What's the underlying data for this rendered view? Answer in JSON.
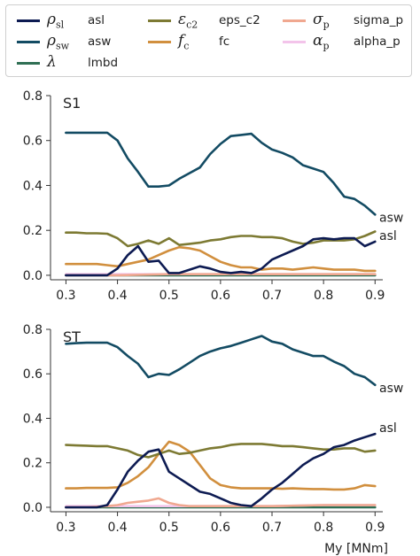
{
  "legend": [
    {
      "symbol": "ρ",
      "sub": "sl",
      "name": "asl",
      "color": "#0d1b52"
    },
    {
      "symbol": "ρ",
      "sub": "sw",
      "name": "asw",
      "color": "#134b63"
    },
    {
      "symbol": "λ",
      "sub": "",
      "name": "lmbd",
      "color": "#2f6f54"
    },
    {
      "symbol": "ε",
      "sub": "c2",
      "name": "eps_c2",
      "color": "#7d7a33"
    },
    {
      "symbol": "f",
      "sub": "c",
      "name": "fc",
      "color": "#d18f3e"
    },
    {
      "symbol": "σ",
      "sub": "p",
      "name": "sigma_p",
      "color": "#f0a890"
    },
    {
      "symbol": "α",
      "sub": "p",
      "name": "alpha_p",
      "color": "#f3c4ea"
    }
  ],
  "chart_data": [
    {
      "type": "line",
      "title": "S1",
      "xlabel": "",
      "ylabel": "",
      "xlim": [
        0.27,
        0.915
      ],
      "ylim": [
        -0.02,
        0.8
      ],
      "xticks": [
        "0.3",
        "0.4",
        "0.5",
        "0.6",
        "0.7",
        "0.8",
        "0.9"
      ],
      "yticks": [
        "0.0",
        "0.2",
        "0.4",
        "0.6",
        "0.8"
      ],
      "end_labels": [
        "asw",
        "asl"
      ],
      "series": [
        {
          "name": "asw",
          "color": "#134b63",
          "x": [
            0.3,
            0.32,
            0.34,
            0.36,
            0.38,
            0.4,
            0.42,
            0.44,
            0.46,
            0.48,
            0.5,
            0.52,
            0.54,
            0.56,
            0.58,
            0.6,
            0.62,
            0.64,
            0.66,
            0.68,
            0.7,
            0.72,
            0.74,
            0.76,
            0.78,
            0.8,
            0.82,
            0.84,
            0.86,
            0.88,
            0.9
          ],
          "y": [
            0.635,
            0.635,
            0.635,
            0.635,
            0.635,
            0.6,
            0.52,
            0.46,
            0.395,
            0.395,
            0.4,
            0.43,
            0.455,
            0.48,
            0.54,
            0.585,
            0.62,
            0.625,
            0.63,
            0.59,
            0.56,
            0.545,
            0.525,
            0.49,
            0.475,
            0.46,
            0.41,
            0.35,
            0.34,
            0.31,
            0.27
          ]
        },
        {
          "name": "asl",
          "color": "#0d1b52",
          "x": [
            0.3,
            0.32,
            0.34,
            0.36,
            0.38,
            0.4,
            0.42,
            0.44,
            0.46,
            0.48,
            0.5,
            0.52,
            0.54,
            0.56,
            0.58,
            0.6,
            0.62,
            0.64,
            0.66,
            0.68,
            0.7,
            0.72,
            0.74,
            0.76,
            0.78,
            0.8,
            0.82,
            0.84,
            0.86,
            0.88,
            0.9
          ],
          "y": [
            0.0,
            0.0,
            0.0,
            0.0,
            0.0,
            0.03,
            0.09,
            0.13,
            0.06,
            0.065,
            0.01,
            0.01,
            0.025,
            0.04,
            0.03,
            0.015,
            0.01,
            0.015,
            0.01,
            0.03,
            0.07,
            0.09,
            0.11,
            0.13,
            0.16,
            0.165,
            0.16,
            0.165,
            0.165,
            0.13,
            0.15
          ]
        },
        {
          "name": "eps_c2",
          "color": "#7d7a33",
          "x": [
            0.3,
            0.32,
            0.34,
            0.36,
            0.38,
            0.4,
            0.42,
            0.44,
            0.46,
            0.48,
            0.5,
            0.52,
            0.54,
            0.56,
            0.58,
            0.6,
            0.62,
            0.64,
            0.66,
            0.68,
            0.7,
            0.72,
            0.74,
            0.76,
            0.78,
            0.8,
            0.82,
            0.84,
            0.86,
            0.88,
            0.9
          ],
          "y": [
            0.19,
            0.19,
            0.187,
            0.187,
            0.185,
            0.165,
            0.13,
            0.14,
            0.155,
            0.14,
            0.165,
            0.135,
            0.14,
            0.145,
            0.155,
            0.16,
            0.17,
            0.175,
            0.175,
            0.17,
            0.17,
            0.165,
            0.15,
            0.14,
            0.145,
            0.155,
            0.155,
            0.155,
            0.16,
            0.175,
            0.195
          ]
        },
        {
          "name": "fc",
          "color": "#d18f3e",
          "x": [
            0.3,
            0.32,
            0.34,
            0.36,
            0.38,
            0.4,
            0.42,
            0.44,
            0.46,
            0.48,
            0.5,
            0.52,
            0.54,
            0.56,
            0.58,
            0.6,
            0.62,
            0.64,
            0.66,
            0.68,
            0.7,
            0.72,
            0.74,
            0.76,
            0.78,
            0.8,
            0.82,
            0.84,
            0.86,
            0.88,
            0.9
          ],
          "y": [
            0.05,
            0.05,
            0.05,
            0.05,
            0.045,
            0.04,
            0.05,
            0.06,
            0.07,
            0.09,
            0.11,
            0.125,
            0.12,
            0.11,
            0.085,
            0.06,
            0.045,
            0.035,
            0.035,
            0.025,
            0.03,
            0.03,
            0.025,
            0.03,
            0.035,
            0.03,
            0.025,
            0.025,
            0.025,
            0.02,
            0.02
          ]
        },
        {
          "name": "sigma_p",
          "color": "#f0a890",
          "x": [
            0.3,
            0.4,
            0.5,
            0.6,
            0.7,
            0.8,
            0.9
          ],
          "y": [
            0.0,
            0.0,
            0.005,
            0.005,
            0.005,
            0.005,
            0.005
          ]
        },
        {
          "name": "alpha_p",
          "color": "#f3c4ea",
          "x": [
            0.3,
            0.4,
            0.5,
            0.6,
            0.7,
            0.8,
            0.9
          ],
          "y": [
            0.005,
            0.005,
            0.005,
            0.005,
            0.005,
            0.005,
            0.005
          ]
        },
        {
          "name": "lmbd",
          "color": "#2f6f54",
          "x": [
            0.3,
            0.4,
            0.5,
            0.6,
            0.7,
            0.8,
            0.9
          ],
          "y": [
            0.0,
            0.0,
            0.0,
            0.0,
            0.0,
            0.0,
            0.0
          ]
        }
      ]
    },
    {
      "type": "line",
      "title": "ST",
      "xlabel": "My [MNm]",
      "ylabel": "",
      "xlim": [
        0.27,
        0.915
      ],
      "ylim": [
        -0.02,
        0.8
      ],
      "xticks": [
        "0.3",
        "0.4",
        "0.5",
        "0.6",
        "0.7",
        "0.8",
        "0.9"
      ],
      "yticks": [
        "0.0",
        "0.2",
        "0.4",
        "0.6",
        "0.8"
      ],
      "end_labels": [
        "asw",
        "asl"
      ],
      "series": [
        {
          "name": "asw",
          "color": "#134b63",
          "x": [
            0.3,
            0.32,
            0.34,
            0.36,
            0.38,
            0.4,
            0.42,
            0.44,
            0.46,
            0.48,
            0.5,
            0.52,
            0.54,
            0.56,
            0.58,
            0.6,
            0.62,
            0.64,
            0.66,
            0.68,
            0.7,
            0.72,
            0.74,
            0.76,
            0.78,
            0.8,
            0.82,
            0.84,
            0.86,
            0.88,
            0.9
          ],
          "y": [
            0.735,
            0.738,
            0.74,
            0.74,
            0.74,
            0.72,
            0.68,
            0.645,
            0.585,
            0.6,
            0.595,
            0.62,
            0.65,
            0.68,
            0.7,
            0.715,
            0.725,
            0.74,
            0.755,
            0.77,
            0.745,
            0.735,
            0.71,
            0.695,
            0.68,
            0.68,
            0.655,
            0.635,
            0.6,
            0.585,
            0.55
          ]
        },
        {
          "name": "asl",
          "color": "#0d1b52",
          "x": [
            0.3,
            0.32,
            0.34,
            0.36,
            0.38,
            0.4,
            0.42,
            0.44,
            0.46,
            0.48,
            0.5,
            0.52,
            0.54,
            0.56,
            0.58,
            0.6,
            0.62,
            0.64,
            0.66,
            0.68,
            0.7,
            0.72,
            0.74,
            0.76,
            0.78,
            0.8,
            0.82,
            0.84,
            0.86,
            0.88,
            0.9
          ],
          "y": [
            0.0,
            0.0,
            0.0,
            0.0,
            0.01,
            0.08,
            0.16,
            0.21,
            0.25,
            0.26,
            0.16,
            0.13,
            0.1,
            0.07,
            0.06,
            0.04,
            0.02,
            0.01,
            0.005,
            0.04,
            0.08,
            0.11,
            0.15,
            0.19,
            0.22,
            0.24,
            0.27,
            0.28,
            0.3,
            0.315,
            0.33
          ]
        },
        {
          "name": "eps_c2",
          "color": "#7d7a33",
          "x": [
            0.3,
            0.32,
            0.34,
            0.36,
            0.38,
            0.4,
            0.42,
            0.44,
            0.46,
            0.48,
            0.5,
            0.52,
            0.54,
            0.56,
            0.58,
            0.6,
            0.62,
            0.64,
            0.66,
            0.68,
            0.7,
            0.72,
            0.74,
            0.76,
            0.78,
            0.8,
            0.82,
            0.84,
            0.86,
            0.88,
            0.9
          ],
          "y": [
            0.28,
            0.278,
            0.277,
            0.275,
            0.275,
            0.265,
            0.255,
            0.235,
            0.225,
            0.24,
            0.255,
            0.24,
            0.245,
            0.255,
            0.265,
            0.27,
            0.28,
            0.285,
            0.285,
            0.285,
            0.28,
            0.275,
            0.275,
            0.27,
            0.265,
            0.26,
            0.26,
            0.265,
            0.265,
            0.25,
            0.255
          ]
        },
        {
          "name": "fc",
          "color": "#d18f3e",
          "x": [
            0.3,
            0.32,
            0.34,
            0.36,
            0.38,
            0.4,
            0.42,
            0.44,
            0.46,
            0.48,
            0.5,
            0.52,
            0.54,
            0.56,
            0.58,
            0.6,
            0.62,
            0.64,
            0.66,
            0.68,
            0.7,
            0.72,
            0.74,
            0.76,
            0.78,
            0.8,
            0.82,
            0.84,
            0.86,
            0.88,
            0.9
          ],
          "y": [
            0.085,
            0.085,
            0.087,
            0.087,
            0.087,
            0.09,
            0.11,
            0.14,
            0.18,
            0.24,
            0.295,
            0.28,
            0.25,
            0.19,
            0.13,
            0.1,
            0.09,
            0.085,
            0.085,
            0.085,
            0.085,
            0.083,
            0.085,
            0.083,
            0.082,
            0.082,
            0.08,
            0.08,
            0.085,
            0.1,
            0.095
          ]
        },
        {
          "name": "sigma_p",
          "color": "#f0a890",
          "x": [
            0.3,
            0.34,
            0.38,
            0.4,
            0.42,
            0.44,
            0.46,
            0.48,
            0.5,
            0.52,
            0.54,
            0.58,
            0.62,
            0.7,
            0.8,
            0.9
          ],
          "y": [
            0.0,
            0.0,
            0.005,
            0.01,
            0.02,
            0.025,
            0.03,
            0.04,
            0.02,
            0.01,
            0.005,
            0.005,
            0.005,
            0.005,
            0.01,
            0.01
          ]
        },
        {
          "name": "alpha_p",
          "color": "#f3c4ea",
          "x": [
            0.3,
            0.4,
            0.5,
            0.6,
            0.7,
            0.8,
            0.9
          ],
          "y": [
            0.005,
            0.005,
            0.005,
            0.005,
            0.005,
            0.01,
            0.01
          ]
        },
        {
          "name": "lmbd",
          "color": "#2f6f54",
          "x": [
            0.3,
            0.4,
            0.5,
            0.6,
            0.7,
            0.8,
            0.9
          ],
          "y": [
            0.0,
            0.0,
            0.0,
            0.0,
            0.0,
            0.0,
            0.0
          ]
        }
      ]
    }
  ]
}
